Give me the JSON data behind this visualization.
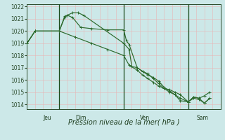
{
  "background_color": "#cce8e8",
  "grid_color": "#e8b4b4",
  "line_color": "#2d6a2d",
  "title": "Pression niveau de la mer( hPa )",
  "ylim": [
    1013.6,
    1022.2
  ],
  "yticks": [
    1014,
    1015,
    1016,
    1017,
    1018,
    1019,
    1020,
    1021,
    1022
  ],
  "xlim": [
    0,
    72
  ],
  "day_positions": [
    6,
    18,
    42,
    63
  ],
  "day_vlines": [
    12,
    36,
    60
  ],
  "day_labels": [
    "Jeu",
    "Dim",
    "Ven",
    "Sam"
  ],
  "line1_x": [
    0,
    3,
    12,
    14,
    15,
    17,
    19,
    21,
    36,
    38,
    39,
    41,
    43,
    45,
    47,
    49,
    51,
    53,
    55,
    57,
    60,
    62,
    64,
    66,
    68
  ],
  "line1_y": [
    1019.0,
    1020.0,
    1020.0,
    1021.2,
    1021.3,
    1021.5,
    1021.5,
    1021.3,
    1019.0,
    1018.5,
    1017.1,
    1017.0,
    1016.7,
    1016.5,
    1016.1,
    1015.7,
    1015.3,
    1015.0,
    1014.8,
    1014.3,
    1014.2,
    1014.5,
    1014.4,
    1014.1,
    1014.5
  ],
  "line2_x": [
    0,
    3,
    12,
    14,
    15,
    17,
    20,
    24,
    30,
    36,
    37,
    38,
    41,
    43,
    45,
    47,
    49,
    51,
    53,
    55,
    57,
    60,
    62,
    64,
    66,
    68
  ],
  "line2_y": [
    1019.0,
    1020.0,
    1020.0,
    1021.1,
    1021.3,
    1021.1,
    1020.3,
    1020.2,
    1020.1,
    1020.1,
    1019.2,
    1018.9,
    1017.0,
    1016.7,
    1016.4,
    1016.2,
    1015.9,
    1015.4,
    1015.1,
    1014.8,
    1014.5,
    1014.2,
    1014.6,
    1014.5,
    1014.1,
    1014.5
  ],
  "line3_x": [
    0,
    3,
    12,
    18,
    24,
    30,
    36,
    38,
    41,
    43,
    45,
    47,
    49,
    51,
    53,
    55,
    57,
    60,
    62,
    64,
    66,
    68
  ],
  "line3_y": [
    1019.0,
    1020.0,
    1020.0,
    1019.5,
    1019.0,
    1018.5,
    1018.0,
    1017.2,
    1016.8,
    1016.4,
    1016.1,
    1015.8,
    1015.5,
    1015.3,
    1015.2,
    1015.0,
    1014.8,
    1014.2,
    1014.6,
    1014.5,
    1014.7,
    1015.0
  ],
  "xlabel_fontsize": 7,
  "ytick_fontsize": 5.5,
  "day_label_fontsize": 5.5
}
